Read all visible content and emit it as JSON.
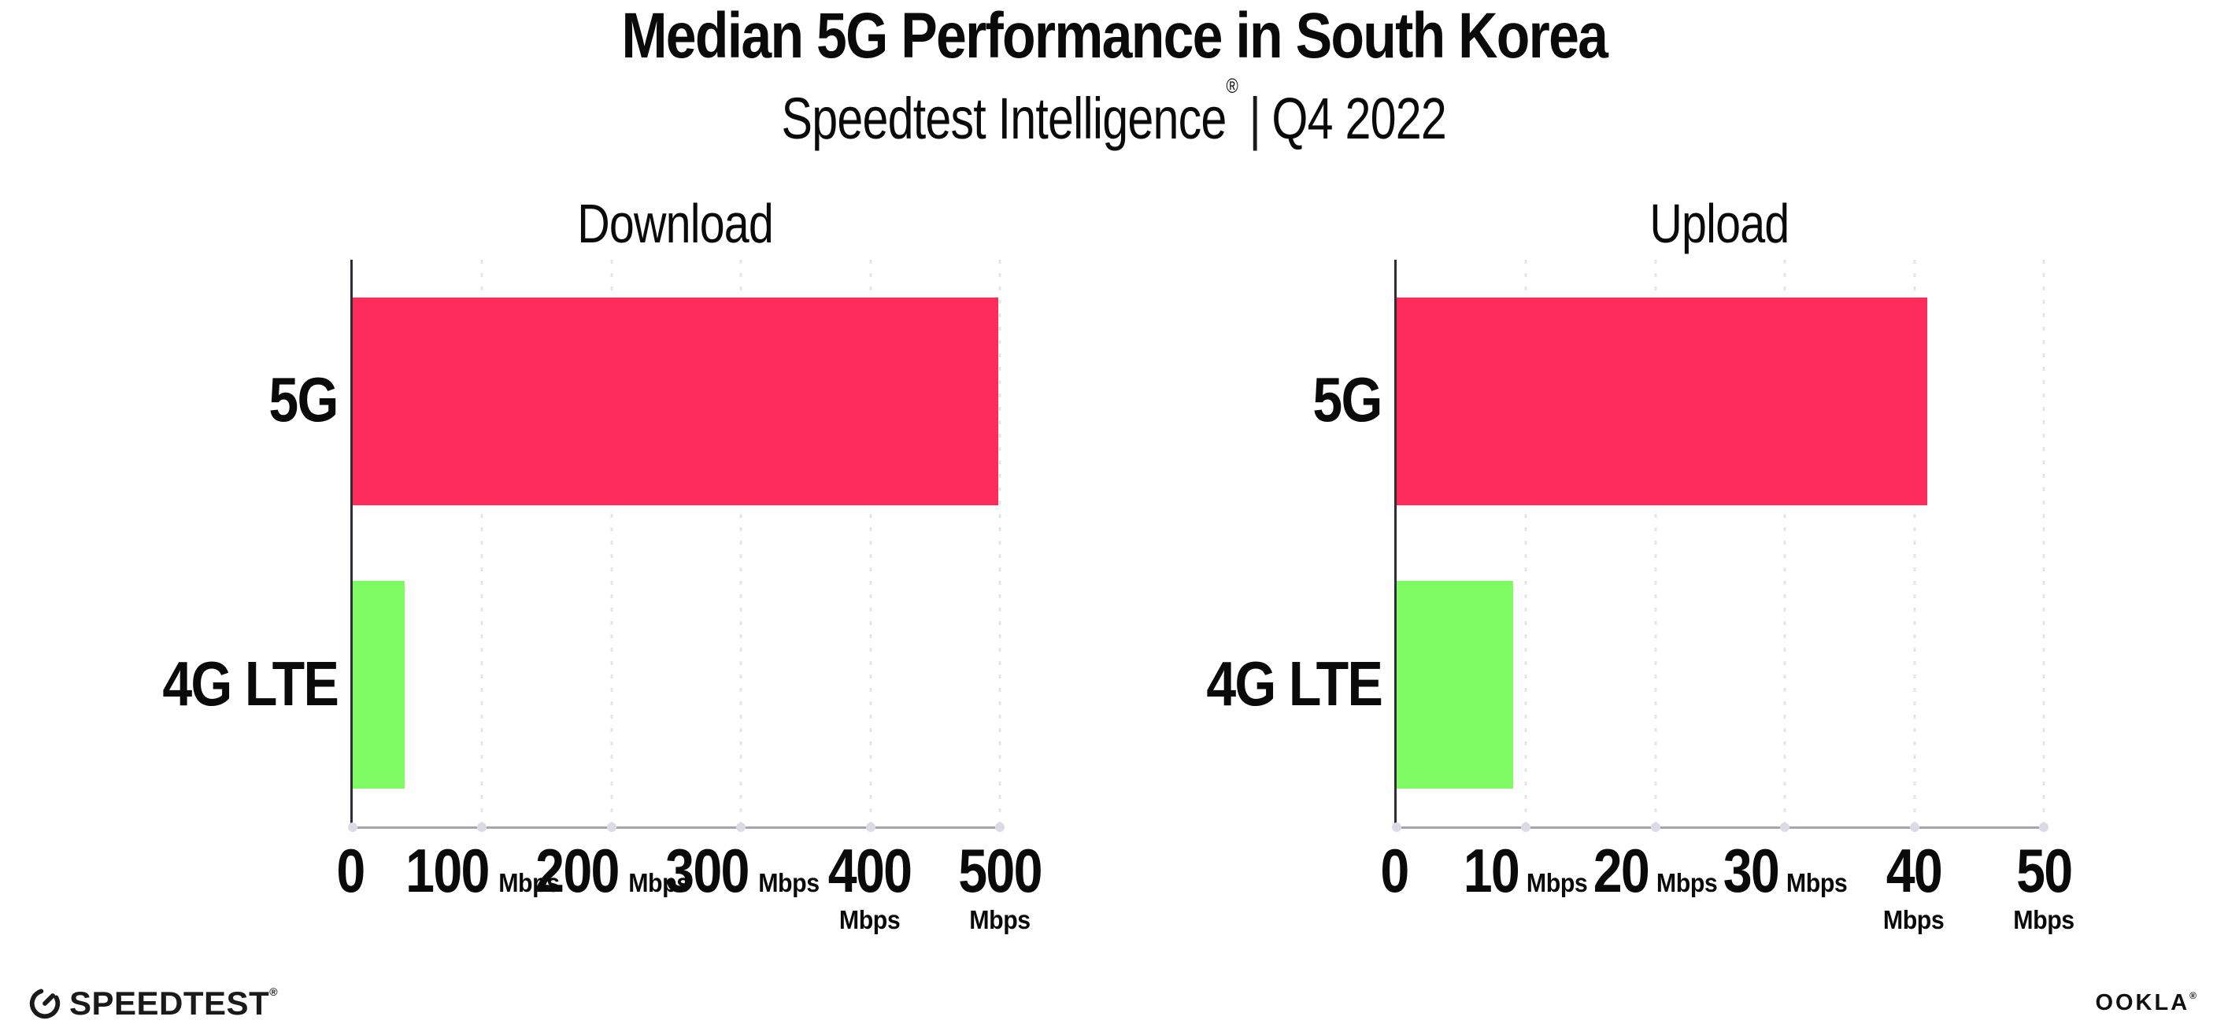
{
  "header": {
    "title": "Median 5G Performance in South Korea",
    "subtitle": {
      "brand": "Speedtest Intelligence",
      "registered_mark": "®",
      "divider": "|",
      "period": "Q4 2022"
    }
  },
  "chart_data": [
    {
      "type": "bar",
      "orientation": "horizontal",
      "title": "Download",
      "categories": [
        "5G",
        "4G LTE"
      ],
      "values": [
        499,
        40
      ],
      "unit": "Mbps",
      "xlim": [
        0,
        500
      ],
      "xticks": [
        0,
        100,
        200,
        300,
        400,
        500
      ],
      "xtick_unit": "Mbps",
      "bar_colors": [
        "#FC2B5A",
        "#7FFB63"
      ],
      "grid": "vertical-dotted",
      "legend": "none"
    },
    {
      "type": "bar",
      "orientation": "horizontal",
      "title": "Upload",
      "categories": [
        "5G",
        "4G LTE"
      ],
      "values": [
        41,
        9
      ],
      "unit": "Mbps",
      "xlim": [
        0,
        50
      ],
      "xticks": [
        0,
        10,
        20,
        30,
        40,
        50
      ],
      "xtick_unit": "Mbps",
      "bar_colors": [
        "#FC2B5A",
        "#7FFB63"
      ],
      "grid": "vertical-dotted",
      "legend": "none"
    }
  ],
  "footer": {
    "speedtest_label": "SPEEDTEST",
    "speedtest_mark": "®",
    "ookla_label": "OOKLA",
    "ookla_mark": "®"
  },
  "colors": {
    "bar_5g": "#FC2B5A",
    "bar_4g_lte": "#7FFB63",
    "y_axis_line": "#2E2E38",
    "x_axis_line": "#A5A5AD",
    "gridline_dots": "#E4E4EF",
    "axis_tick_dots": "#DBDBE7",
    "text": "#0A0A0A"
  }
}
